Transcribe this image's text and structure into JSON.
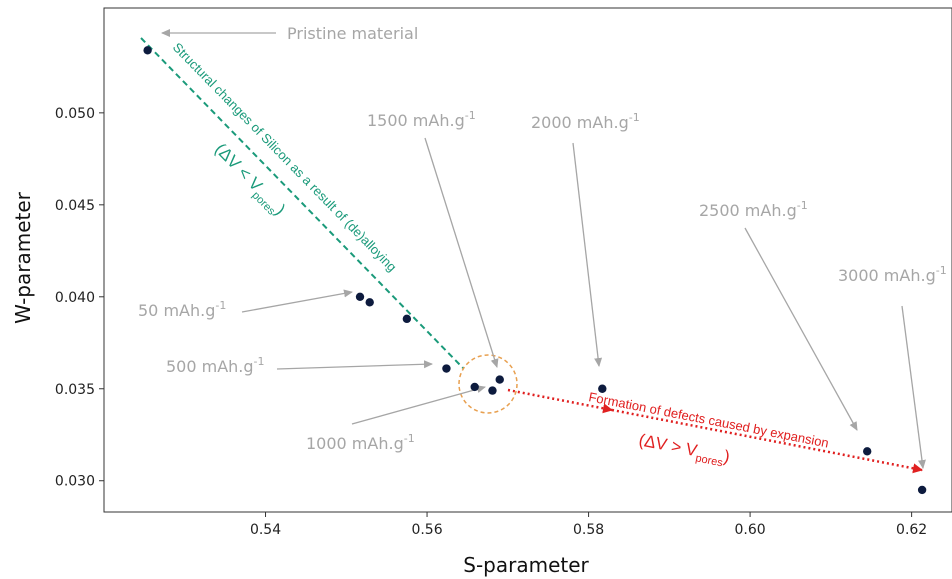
{
  "chart_data": {
    "type": "scatter",
    "xlabel": "S-parameter",
    "ylabel": "W-parameter",
    "xlim": [
      0.52,
      0.625
    ],
    "ylim": [
      0.0283,
      0.0557
    ],
    "x_ticks": [
      0.54,
      0.56,
      0.58,
      0.6,
      0.62
    ],
    "x_tick_labels": [
      "0.54",
      "0.56",
      "0.58",
      "0.60",
      "0.62"
    ],
    "y_ticks": [
      0.03,
      0.035,
      0.04,
      0.045,
      0.05
    ],
    "y_tick_labels": [
      "0.030",
      "0.035",
      "0.040",
      "0.045",
      "0.050"
    ],
    "points": [
      {
        "x": 0.5254,
        "y": 0.0534
      },
      {
        "x": 0.5517,
        "y": 0.04
      },
      {
        "x": 0.5529,
        "y": 0.0397
      },
      {
        "x": 0.5575,
        "y": 0.0388
      },
      {
        "x": 0.5624,
        "y": 0.0361
      },
      {
        "x": 0.5659,
        "y": 0.0351
      },
      {
        "x": 0.5681,
        "y": 0.0349
      },
      {
        "x": 0.569,
        "y": 0.0355
      },
      {
        "x": 0.5817,
        "y": 0.035
      },
      {
        "x": 0.6145,
        "y": 0.0316
      },
      {
        "x": 0.6213,
        "y": 0.0295
      }
    ],
    "annotations": {
      "pristine": "Pristine material",
      "c50": {
        "main": "50 mAh.g",
        "sup": "-1"
      },
      "c500": {
        "main": "500 mAh.g",
        "sup": "-1"
      },
      "c1000": {
        "main": "1000 mAh.g",
        "sup": "-1"
      },
      "c1500": {
        "main": "1500 mAh.g",
        "sup": "-1"
      },
      "c2000": {
        "main": "2000 mAh.g",
        "sup": "-1"
      },
      "c2500": {
        "main": "2500 mAh.g",
        "sup": "-1"
      },
      "c3000": {
        "main": "3000 mAh.g",
        "sup": "-1"
      }
    },
    "green_text": "Structural changes of Silicon as a result of (de)alloying",
    "green_formula": {
      "main": "(ΔV < V",
      "sub": "pores",
      "end": ")"
    },
    "red_text": "Formation of defects caused by expansion",
    "red_formula": {
      "main": "(ΔV > V",
      "sub": "pores",
      "end": ")"
    },
    "colors": {
      "points": "#0d1b3e",
      "green": "#1a9a7a",
      "red": "#e02020",
      "circle": "#e8a050",
      "annotation": "#a6a6a6"
    }
  }
}
